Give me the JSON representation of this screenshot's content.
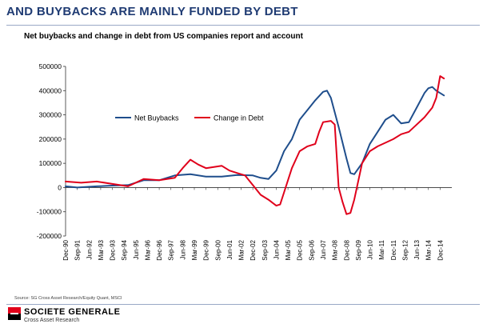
{
  "header": {
    "title": "AND BUYBACKS ARE MAINLY FUNDED BY DEBT"
  },
  "footer": {
    "source": "Source: SG Cross Asset Research/Equity Quant, MSCI",
    "brand": "SOCIETE GENERALE",
    "brand_sub": "Cross Asset Research"
  },
  "colors": {
    "buybacks": "#1f4e8c",
    "debt": "#e0001b",
    "title": "#1f3b73",
    "brand_red": "#e2001a"
  },
  "chart_data": {
    "type": "line",
    "title": "Net buybacks and change in debt from US companies report and account",
    "xlabel": "",
    "ylabel": "",
    "ylim": [
      -200000,
      500000
    ],
    "yticks": [
      -200000,
      -100000,
      0,
      100000,
      200000,
      300000,
      400000,
      500000
    ],
    "ytick_labels": [
      "-200000",
      "-100000",
      "0",
      "100000",
      "200000",
      "300000",
      "400000",
      "500000"
    ],
    "xtick_labels": [
      "Dec-90",
      "Sep-91",
      "Jun-92",
      "Mar-93",
      "Dec-93",
      "Sep-94",
      "Jun-95",
      "Mar-96",
      "Dec-96",
      "Sep-97",
      "Jun-98",
      "Mar-99",
      "Dec-99",
      "Sep-00",
      "Jun-01",
      "Mar-02",
      "Dec-02",
      "Sep-03",
      "Jun-04",
      "Mar-05",
      "Dec-05",
      "Sep-06",
      "Jun-07",
      "Mar-08",
      "Dec-08",
      "Sep-09",
      "Jun-10",
      "Mar-11",
      "Dec-11",
      "Sep-12",
      "Jun-13",
      "Mar-14",
      "Dec-14"
    ],
    "x_start": "Dec-90",
    "x_end": "Sep-15",
    "x_unit": "quarters",
    "legend_position": "upper-left",
    "grid": false,
    "series": [
      {
        "name": "Net Buybacks",
        "color": "#1f4e8c",
        "points": [
          [
            0,
            5000
          ],
          [
            3,
            0
          ],
          [
            8,
            5000
          ],
          [
            12,
            8000
          ],
          [
            16,
            10000
          ],
          [
            20,
            30000
          ],
          [
            24,
            30000
          ],
          [
            28,
            50000
          ],
          [
            32,
            55000
          ],
          [
            36,
            45000
          ],
          [
            40,
            45000
          ],
          [
            44,
            52000
          ],
          [
            48,
            50000
          ],
          [
            50,
            40000
          ],
          [
            52,
            35000
          ],
          [
            54,
            70000
          ],
          [
            56,
            150000
          ],
          [
            58,
            200000
          ],
          [
            60,
            280000
          ],
          [
            62,
            320000
          ],
          [
            64,
            360000
          ],
          [
            66,
            395000
          ],
          [
            67,
            400000
          ],
          [
            68,
            370000
          ],
          [
            70,
            250000
          ],
          [
            72,
            120000
          ],
          [
            73,
            60000
          ],
          [
            74,
            55000
          ],
          [
            76,
            100000
          ],
          [
            78,
            180000
          ],
          [
            80,
            230000
          ],
          [
            82,
            280000
          ],
          [
            84,
            300000
          ],
          [
            86,
            265000
          ],
          [
            88,
            270000
          ],
          [
            90,
            330000
          ],
          [
            92,
            390000
          ],
          [
            93,
            410000
          ],
          [
            94,
            415000
          ],
          [
            95,
            400000
          ],
          [
            96,
            390000
          ],
          [
            97,
            380000
          ]
        ]
      },
      {
        "name": "Change in Debt",
        "color": "#e0001b",
        "points": [
          [
            0,
            25000
          ],
          [
            4,
            20000
          ],
          [
            8,
            25000
          ],
          [
            12,
            15000
          ],
          [
            16,
            5000
          ],
          [
            20,
            35000
          ],
          [
            24,
            30000
          ],
          [
            28,
            40000
          ],
          [
            30,
            80000
          ],
          [
            32,
            115000
          ],
          [
            34,
            95000
          ],
          [
            36,
            80000
          ],
          [
            38,
            85000
          ],
          [
            40,
            90000
          ],
          [
            42,
            70000
          ],
          [
            44,
            60000
          ],
          [
            46,
            50000
          ],
          [
            48,
            10000
          ],
          [
            50,
            -30000
          ],
          [
            52,
            -50000
          ],
          [
            54,
            -75000
          ],
          [
            55,
            -70000
          ],
          [
            56,
            -20000
          ],
          [
            58,
            80000
          ],
          [
            60,
            150000
          ],
          [
            62,
            170000
          ],
          [
            64,
            180000
          ],
          [
            65,
            230000
          ],
          [
            66,
            270000
          ],
          [
            68,
            275000
          ],
          [
            69,
            260000
          ],
          [
            70,
            0
          ],
          [
            71,
            -60000
          ],
          [
            72,
            -110000
          ],
          [
            73,
            -105000
          ],
          [
            74,
            -50000
          ],
          [
            76,
            100000
          ],
          [
            78,
            150000
          ],
          [
            80,
            170000
          ],
          [
            82,
            185000
          ],
          [
            84,
            200000
          ],
          [
            86,
            220000
          ],
          [
            88,
            230000
          ],
          [
            90,
            260000
          ],
          [
            92,
            290000
          ],
          [
            94,
            330000
          ],
          [
            95,
            370000
          ],
          [
            96,
            460000
          ],
          [
            97,
            450000
          ]
        ]
      }
    ]
  }
}
